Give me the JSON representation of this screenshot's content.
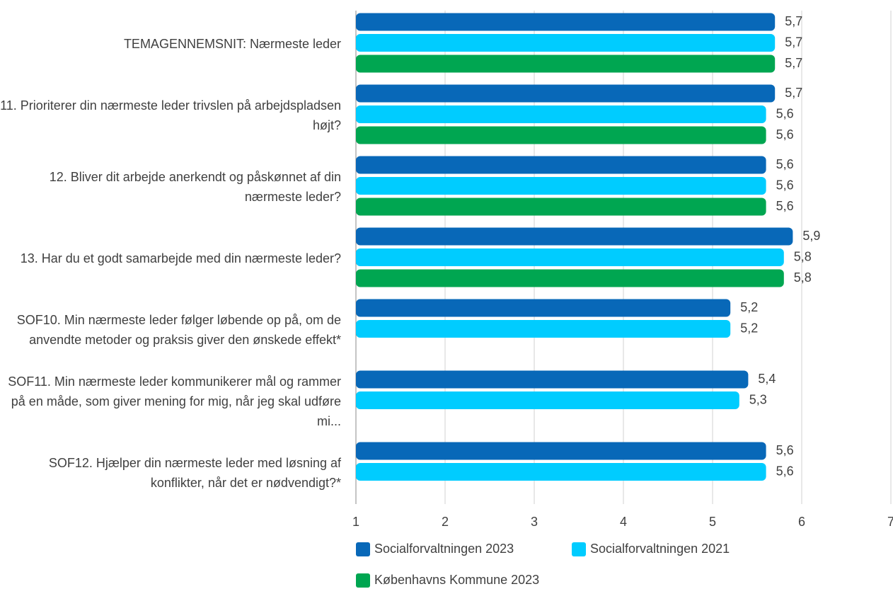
{
  "chart_data": {
    "type": "barh",
    "categories": [
      "TEMAGENNEMSNIT: Nærmeste leder",
      "11. Prioriterer din nærmeste leder trivslen på arbejdspladsen højt?",
      "12. Bliver dit arbejde anerkendt og påskønnet af din nærmeste leder?",
      "13. Har du et godt samarbejde med din nærmeste leder?",
      "SOF10. Min nærmeste leder følger løbende op på, om de anvendte metoder og praksis giver den ønskede effekt*",
      "SOF11. Min nærmeste leder kommunikerer mål og rammer på en måde, som giver mening for mig, når jeg skal udføre mi...",
      "SOF12. Hjælper din nærmeste leder med løsning af konflikter, når det er nødvendigt?*"
    ],
    "series": [
      {
        "name": "Socialforvaltningen 2023",
        "color": "#0868b8",
        "values": [
          5.7,
          5.7,
          5.6,
          5.9,
          5.2,
          5.4,
          5.6
        ],
        "value_labels": [
          "5,7",
          "5,7",
          "5,6",
          "5,9",
          "5,2",
          "5,4",
          "5,6"
        ]
      },
      {
        "name": "Socialforvaltningen 2021",
        "color": "#00ccff",
        "values": [
          5.7,
          5.6,
          5.6,
          5.8,
          5.2,
          5.3,
          5.6
        ],
        "value_labels": [
          "5,7",
          "5,6",
          "5,6",
          "5,8",
          "5,2",
          "5,3",
          "5,6"
        ]
      },
      {
        "name": "Københavns Kommune 2023",
        "color": "#00a651",
        "values": [
          5.7,
          5.6,
          5.6,
          5.8,
          null,
          null,
          null
        ],
        "value_labels": [
          "5,7",
          "5,6",
          "5,6",
          "5,8",
          null,
          null,
          null
        ]
      }
    ],
    "xlim": [
      1,
      7
    ],
    "xticks": [
      1,
      2,
      3,
      4,
      5,
      6,
      7
    ],
    "grid": true
  }
}
